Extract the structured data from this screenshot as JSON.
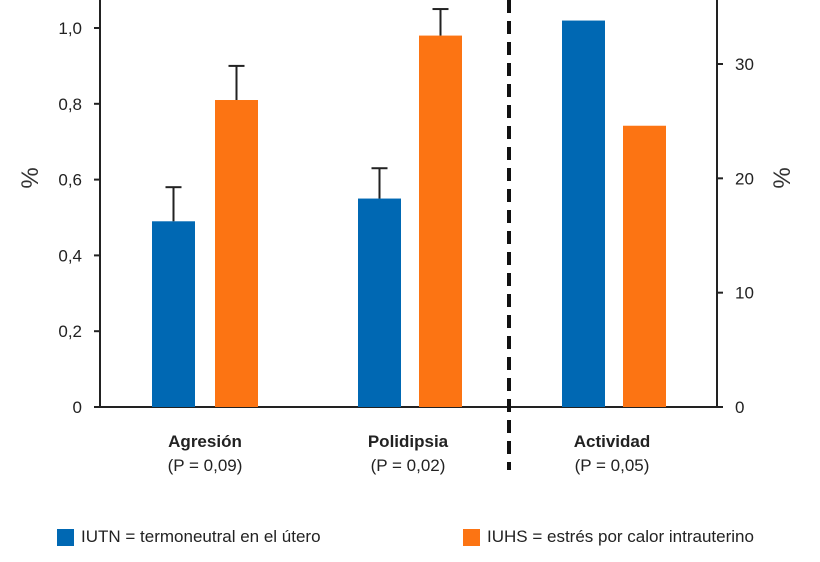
{
  "chart_data": {
    "type": "bar",
    "categories": [
      {
        "name": "Agresión",
        "p": "(P = 0,09)"
      },
      {
        "name": "Polidipsia",
        "p": "(P = 0,02)"
      },
      {
        "name": "Actividad",
        "p": "(P = 0,05)"
      }
    ],
    "series": [
      {
        "name": "IUTN = termoneutral en el útero",
        "color": "#0068b3",
        "values": [
          0.49,
          0.55,
          33.8
        ],
        "error_upper": [
          0.58,
          0.63,
          null
        ]
      },
      {
        "name": "IUHS = estrés por calor intrauterino",
        "color": "#fc7413",
        "values": [
          0.81,
          0.98,
          24.6
        ],
        "error_upper": [
          0.9,
          1.05,
          null
        ]
      }
    ],
    "axis_assignment": [
      "left",
      "left",
      "right"
    ],
    "left_axis": {
      "label": "%",
      "ylim": [
        0,
        1.0
      ],
      "ticks": [
        "0",
        "0,2",
        "0,4",
        "0,6",
        "0,8",
        "1,0"
      ]
    },
    "right_axis": {
      "label": "%",
      "ylim": [
        0,
        30
      ],
      "ticks": [
        "0",
        "10",
        "20",
        "30"
      ]
    },
    "grid": false,
    "legend_placement": "bottom"
  }
}
